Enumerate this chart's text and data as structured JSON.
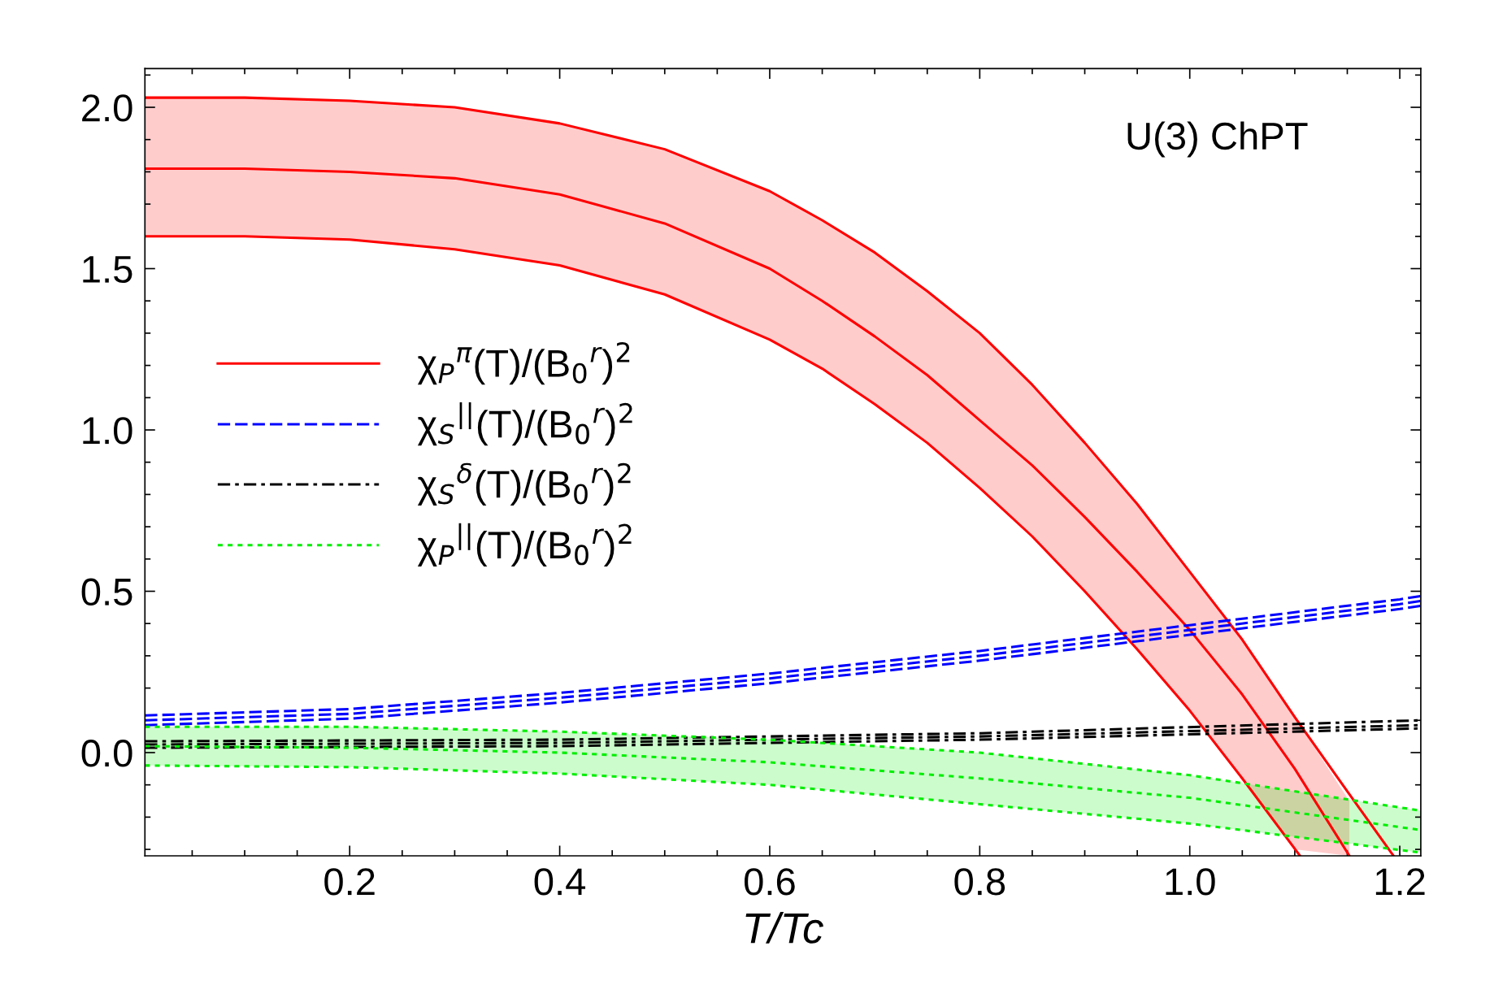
{
  "chart_data": {
    "type": "line",
    "xlabel": "T/Tc",
    "annotations": [
      "U(3) ChPT"
    ],
    "xlim": [
      0.005,
      1.22
    ],
    "ylim": [
      -0.32,
      2.12
    ],
    "xticks": [
      0.2,
      0.4,
      0.6,
      0.8,
      {
        "value": 1.0,
        "label": "1.0"
      },
      1.2
    ],
    "yticks": [
      {
        "value": 0,
        "label": "0.0"
      },
      0.5,
      {
        "value": 1,
        "label": "1.0"
      },
      1.5,
      {
        "value": 2,
        "label": "2.0"
      }
    ],
    "grid": false,
    "legend": "left",
    "marker": "none",
    "series": [
      {
        "name": "χ$_{P}$$^{π}$(T)/(B$_{0}$$^{r}$)$^{2}$",
        "color": "#ff0000",
        "line_style": "solid",
        "x": [
          0.005,
          0.1,
          0.2,
          0.3,
          0.4,
          0.5,
          0.6,
          0.65,
          0.7,
          0.75,
          0.8,
          0.85,
          0.9,
          0.95,
          1.0,
          1.05,
          1.1,
          1.152
        ],
        "values": [
          1.81,
          1.81,
          1.8,
          1.78,
          1.73,
          1.64,
          1.5,
          1.4,
          1.29,
          1.17,
          1.03,
          0.89,
          0.73,
          0.56,
          0.38,
          0.18,
          -0.05,
          -0.32
        ],
        "upper": [
          2.03,
          2.03,
          2.02,
          2.0,
          1.95,
          1.87,
          1.74,
          1.65,
          1.55,
          1.43,
          1.3,
          1.14,
          0.96,
          0.77,
          0.56,
          0.35,
          0.11,
          -0.15
        ],
        "lower": [
          1.6,
          1.6,
          1.59,
          1.56,
          1.51,
          1.42,
          1.28,
          1.19,
          1.08,
          0.96,
          0.82,
          0.67,
          0.5,
          0.32,
          0.13,
          -0.08,
          -0.3,
          -0.32
        ]
      },
      {
        "color": "#ff0000",
        "line_style": "solid",
        "x": [
          0.005,
          0.1,
          0.2,
          0.3,
          0.4,
          0.5,
          0.6,
          0.65,
          0.7,
          0.75,
          0.8,
          0.85,
          0.9,
          0.95,
          1.0,
          1.05,
          1.1,
          1.15,
          1.194
        ],
        "values": [
          2.03,
          2.03,
          2.02,
          2.0,
          1.95,
          1.87,
          1.74,
          1.65,
          1.55,
          1.43,
          1.3,
          1.14,
          0.96,
          0.77,
          0.56,
          0.35,
          0.11,
          -0.12,
          -0.32
        ]
      },
      {
        "color": "#ff0000",
        "line_style": "solid",
        "x": [
          0.005,
          0.1,
          0.2,
          0.3,
          0.4,
          0.5,
          0.6,
          0.65,
          0.7,
          0.75,
          0.8,
          0.85,
          0.9,
          0.95,
          1.0,
          1.05,
          1.105
        ],
        "values": [
          1.6,
          1.6,
          1.59,
          1.56,
          1.51,
          1.42,
          1.28,
          1.19,
          1.08,
          0.96,
          0.82,
          0.67,
          0.5,
          0.32,
          0.13,
          -0.08,
          -0.32
        ]
      },
      {
        "name": "χ$_{S}$$^{||}$(T)/(B$_{0}$$^{r}$)$^{2}$",
        "color": "#0000ff",
        "line_style": "dashed",
        "x": [
          0.005,
          0.2,
          0.4,
          0.6,
          0.8,
          1.0,
          1.2,
          1.22
        ],
        "values": [
          0.1,
          0.12,
          0.17,
          0.23,
          0.3,
          0.38,
          0.46,
          0.47
        ]
      },
      {
        "color": "#0000ff",
        "line_style": "dashed",
        "x": [
          0.005,
          0.2,
          0.4,
          0.6,
          0.8,
          1.0,
          1.2,
          1.22
        ],
        "values": [
          0.115,
          0.135,
          0.185,
          0.245,
          0.315,
          0.395,
          0.475,
          0.485
        ]
      },
      {
        "color": "#0000ff",
        "line_style": "dashed",
        "x": [
          0.005,
          0.2,
          0.4,
          0.6,
          0.8,
          1.0,
          1.2,
          1.22
        ],
        "values": [
          0.085,
          0.105,
          0.155,
          0.215,
          0.285,
          0.365,
          0.445,
          0.455
        ]
      },
      {
        "name": "χ$_{S}$$^{δ}$(T)/(B$_{0}$$^{r}$)$^{2}$",
        "color": "#000000",
        "line_style": "dashdot",
        "x": [
          0.005,
          0.4,
          0.8,
          1.22
        ],
        "values": [
          0.025,
          0.03,
          0.05,
          0.085
        ]
      },
      {
        "color": "#000000",
        "line_style": "dashdot",
        "x": [
          0.005,
          0.4,
          0.8,
          1.22
        ],
        "values": [
          0.035,
          0.04,
          0.06,
          0.1
        ]
      },
      {
        "color": "#000000",
        "line_style": "dashdot",
        "x": [
          0.005,
          0.4,
          0.8,
          1.22
        ],
        "values": [
          0.015,
          0.02,
          0.04,
          0.075
        ]
      },
      {
        "name": "χ$_{P}$$^{||}$(T)/(B$_{0}$$^{r}$)$^{2}$",
        "color": "#00ee00",
        "line_style": "dotted",
        "x": [
          0.005,
          0.2,
          0.4,
          0.6,
          0.8,
          1.0,
          1.22
        ],
        "values": [
          0.02,
          0.015,
          0.0,
          -0.03,
          -0.08,
          -0.14,
          -0.24
        ],
        "upper": [
          0.08,
          0.08,
          0.065,
          0.04,
          0.0,
          -0.07,
          -0.18
        ],
        "lower": [
          -0.04,
          -0.045,
          -0.065,
          -0.1,
          -0.16,
          -0.22,
          -0.31
        ]
      },
      {
        "color": "#00ee00",
        "line_style": "dotted",
        "x": [
          0.005,
          0.2,
          0.4,
          0.6,
          0.8,
          1.0,
          1.22
        ],
        "values": [
          0.08,
          0.08,
          0.065,
          0.04,
          0.0,
          -0.07,
          -0.18
        ]
      },
      {
        "color": "#00ee00",
        "line_style": "dotted",
        "x": [
          0.005,
          0.2,
          0.4,
          0.6,
          0.8,
          1.0,
          1.22
        ],
        "values": [
          -0.04,
          -0.045,
          -0.065,
          -0.1,
          -0.16,
          -0.22,
          -0.31
        ]
      }
    ]
  }
}
